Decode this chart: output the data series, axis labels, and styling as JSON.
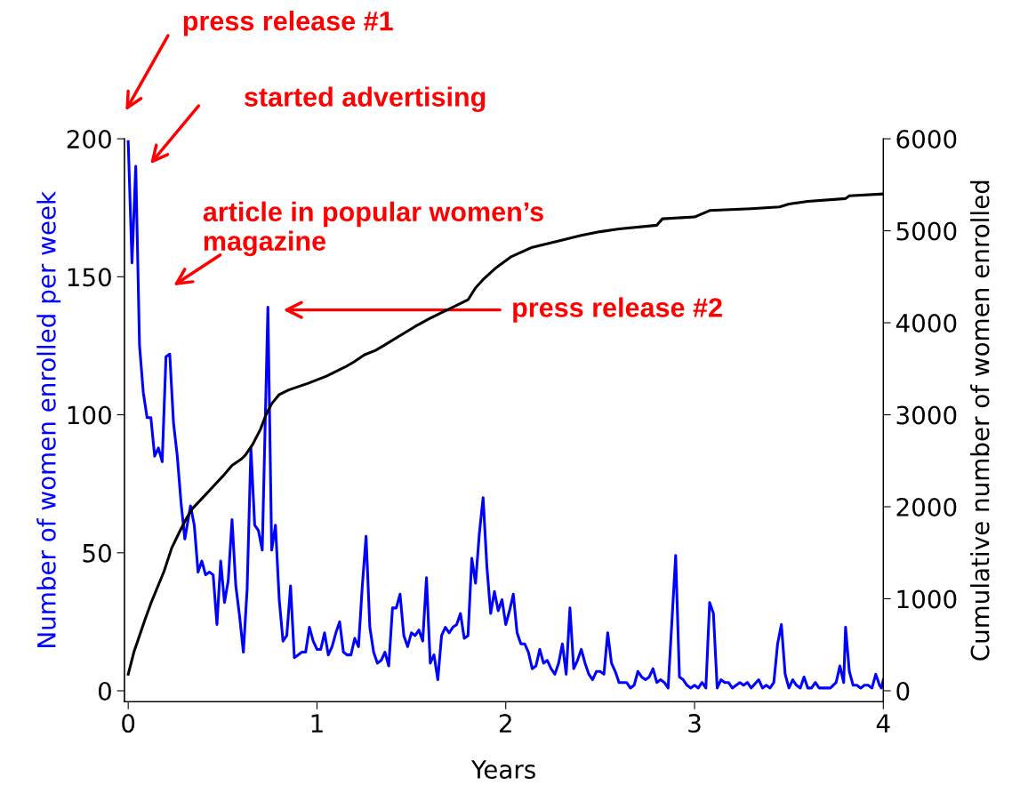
{
  "chart_data": {
    "type": "line",
    "xlabel": "Years",
    "ylabel": "Number of women enrolled per week",
    "y2label": "Cumulative number of women enrolled",
    "xlim": [
      -0.02,
      4.0
    ],
    "xticks": [
      0,
      1,
      2,
      3,
      4
    ],
    "ylim": [
      -4,
      200
    ],
    "yticks": [
      0,
      50,
      100,
      150,
      200
    ],
    "y2lim": [
      -120,
      6000
    ],
    "y2ticks": [
      0,
      1000,
      2000,
      3000,
      4000,
      5000,
      6000
    ],
    "grid": false,
    "marker": "none",
    "line_style": "solid",
    "series": [
      {
        "color": "#0000ff",
        "x": [
          0.0,
          0.02,
          0.04,
          0.06,
          0.08,
          0.1,
          0.12,
          0.14,
          0.16,
          0.18,
          0.2,
          0.22,
          0.24,
          0.26,
          0.28,
          0.3,
          0.33,
          0.35,
          0.37,
          0.39,
          0.41,
          0.43,
          0.45,
          0.47,
          0.49,
          0.51,
          0.53,
          0.55,
          0.57,
          0.59,
          0.61,
          0.63,
          0.65,
          0.67,
          0.69,
          0.71,
          0.74,
          0.76,
          0.78,
          0.8,
          0.82,
          0.84,
          0.86,
          0.88,
          0.9,
          0.92,
          0.94,
          0.96,
          0.98,
          1.0,
          1.02,
          1.04,
          1.06,
          1.08,
          1.1,
          1.12,
          1.14,
          1.16,
          1.18,
          1.2,
          1.22,
          1.24,
          1.26,
          1.28,
          1.3,
          1.32,
          1.34,
          1.36,
          1.38,
          1.4,
          1.42,
          1.44,
          1.46,
          1.48,
          1.5,
          1.52,
          1.54,
          1.56,
          1.58,
          1.6,
          1.62,
          1.64,
          1.66,
          1.68,
          1.7,
          1.72,
          1.74,
          1.76,
          1.78,
          1.8,
          1.82,
          1.84,
          1.86,
          1.88,
          1.9,
          1.92,
          1.94,
          1.96,
          1.98,
          2.0,
          2.02,
          2.04,
          2.06,
          2.08,
          2.1,
          2.12,
          2.14,
          2.16,
          2.18,
          2.2,
          2.22,
          2.24,
          2.26,
          2.28,
          2.3,
          2.32,
          2.34,
          2.36,
          2.38,
          2.4,
          2.42,
          2.44,
          2.46,
          2.48,
          2.5,
          2.52,
          2.54,
          2.56,
          2.58,
          2.6,
          2.64,
          2.66,
          2.68,
          2.7,
          2.72,
          2.74,
          2.76,
          2.78,
          2.8,
          2.82,
          2.84,
          2.86,
          2.88,
          2.9,
          2.92,
          2.94,
          2.96,
          2.98,
          3.0,
          3.02,
          3.04,
          3.06,
          3.08,
          3.1,
          3.12,
          3.14,
          3.16,
          3.18,
          3.2,
          3.24,
          3.26,
          3.28,
          3.3,
          3.34,
          3.36,
          3.38,
          3.4,
          3.42,
          3.44,
          3.46,
          3.48,
          3.5,
          3.52,
          3.54,
          3.56,
          3.58,
          3.6,
          3.62,
          3.64,
          3.66,
          3.72,
          3.75,
          3.77,
          3.79,
          3.8,
          3.82,
          3.84,
          3.86,
          3.88,
          3.9,
          3.92,
          3.94,
          3.96,
          3.98,
          3.99,
          4.0
        ],
        "values": [
          199,
          155,
          190,
          125,
          108,
          99,
          99,
          85,
          88,
          83,
          121,
          122,
          97,
          85,
          68,
          55,
          67,
          60,
          43,
          47,
          42,
          43,
          42,
          24,
          47,
          32,
          40,
          62,
          38,
          27,
          14,
          37,
          88,
          60,
          58,
          51,
          139,
          51,
          60,
          33,
          18,
          20,
          38,
          12,
          13,
          14,
          14,
          23,
          18,
          15,
          15,
          21,
          13,
          16,
          21,
          25,
          14,
          13,
          13,
          19,
          16,
          38,
          56,
          23,
          14,
          10,
          11,
          14,
          9,
          30,
          30,
          35,
          20,
          16,
          21,
          20,
          22,
          18,
          41,
          10,
          13,
          4,
          20,
          23,
          21,
          23,
          24,
          28,
          19,
          20,
          48,
          39,
          57,
          70,
          45,
          28,
          36,
          29,
          33,
          24,
          29,
          35,
          21,
          17,
          17,
          14,
          8,
          9,
          15,
          10,
          11,
          8,
          6,
          10,
          17,
          6,
          30,
          8,
          11,
          15,
          10,
          6,
          4,
          7,
          7,
          6,
          21,
          10,
          7,
          3,
          3,
          1,
          2,
          7,
          5,
          4,
          5,
          8,
          3,
          4,
          3,
          1,
          25,
          49,
          5,
          4,
          2,
          1,
          2,
          1,
          3,
          1,
          32,
          28,
          1,
          4,
          3,
          3,
          1,
          3,
          2,
          3,
          1,
          4,
          1,
          2,
          1,
          3,
          17,
          24,
          6,
          1,
          4,
          2,
          1,
          5,
          1,
          1,
          3,
          1,
          1,
          3,
          9,
          3,
          23,
          7,
          2,
          2,
          1,
          2,
          2,
          1,
          6,
          2,
          1,
          4
        ]
      },
      {
        "color": "#000000",
        "axis": "y2",
        "x": [
          0.0,
          0.03,
          0.06,
          0.09,
          0.12,
          0.16,
          0.19,
          0.23,
          0.27,
          0.31,
          0.34,
          0.4,
          0.45,
          0.5,
          0.55,
          0.6,
          0.62,
          0.66,
          0.7,
          0.73,
          0.76,
          0.8,
          0.85,
          0.95,
          1.05,
          1.15,
          1.2,
          1.25,
          1.31,
          1.36,
          1.44,
          1.52,
          1.6,
          1.67,
          1.75,
          1.8,
          1.84,
          1.88,
          1.95,
          2.03,
          2.14,
          2.3,
          2.4,
          2.5,
          2.6,
          2.8,
          2.83,
          3.0,
          3.08,
          3.3,
          3.45,
          3.5,
          3.6,
          3.8,
          3.82,
          4.0
        ],
        "values": [
          180,
          420,
          600,
          780,
          950,
          1150,
          1300,
          1550,
          1720,
          1880,
          1980,
          2110,
          2220,
          2330,
          2450,
          2520,
          2560,
          2680,
          2840,
          3000,
          3120,
          3220,
          3270,
          3340,
          3420,
          3520,
          3580,
          3650,
          3700,
          3760,
          3860,
          3960,
          4050,
          4120,
          4200,
          4250,
          4380,
          4470,
          4600,
          4720,
          4820,
          4900,
          4950,
          4990,
          5020,
          5060,
          5130,
          5150,
          5220,
          5240,
          5260,
          5290,
          5320,
          5350,
          5380,
          5400
        ]
      }
    ],
    "annotations": [
      "press release #1",
      "started advertising",
      "article in popular women’s\nmagazine",
      "press release #2"
    ]
  }
}
